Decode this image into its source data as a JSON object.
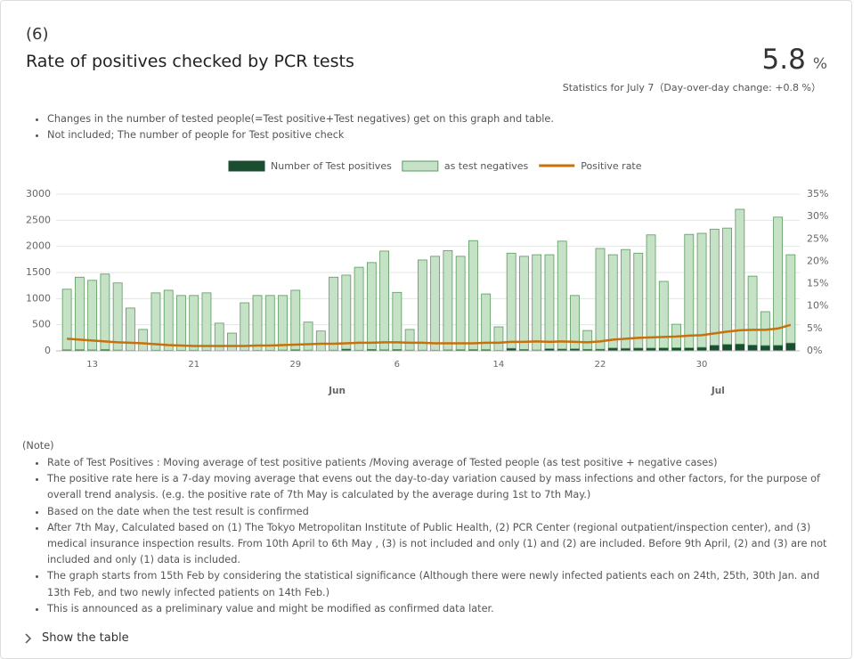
{
  "header": {
    "number": "(6)",
    "title": "Rate of positives checked by PCR tests",
    "value": 5.8,
    "unit": "%",
    "subtitle": "Statistics for July 7（Day-over-day change: +0.8 %）"
  },
  "intro": [
    "Changes in the number of tested people(=Test positive+Test negatives) get on this graph and table.",
    "Not included; The number of people for Test positive check"
  ],
  "chart_data": {
    "type": "bar",
    "stacked": true,
    "grid": true,
    "categories": [
      null,
      null,
      "13",
      null,
      null,
      null,
      null,
      null,
      null,
      null,
      "21",
      null,
      null,
      null,
      null,
      null,
      null,
      null,
      "29",
      null,
      null,
      null,
      null,
      null,
      null,
      null,
      "6",
      null,
      null,
      null,
      null,
      null,
      null,
      null,
      "14",
      null,
      null,
      null,
      null,
      null,
      null,
      null,
      "22",
      null,
      null,
      null,
      null,
      null,
      null,
      null,
      "30",
      null,
      null,
      null,
      null,
      null,
      null,
      null
    ],
    "month_labels": [
      null,
      null,
      null,
      null,
      null,
      null,
      null,
      null,
      null,
      null,
      null,
      null,
      null,
      null,
      null,
      null,
      null,
      null,
      null,
      null,
      null,
      "Jun",
      null,
      null,
      null,
      null,
      null,
      null,
      null,
      null,
      null,
      null,
      null,
      null,
      null,
      null,
      null,
      null,
      null,
      null,
      null,
      null,
      null,
      null,
      null,
      null,
      null,
      null,
      null,
      null,
      null,
      "Jul",
      null,
      null,
      null,
      null,
      null,
      null
    ],
    "series": [
      {
        "name": "Number of Test positives",
        "color": "#1b4d31",
        "values": [
          20,
          22,
          18,
          25,
          15,
          8,
          5,
          12,
          10,
          11,
          12,
          10,
          5,
          3,
          8,
          10,
          11,
          15,
          22,
          14,
          5,
          13,
          34,
          12,
          28,
          20,
          26,
          14,
          13,
          12,
          18,
          22,
          25,
          24,
          10,
          48,
          27,
          16,
          41,
          35,
          39,
          29,
          31,
          55,
          48,
          54,
          54,
          57,
          60,
          58,
          67,
          107,
          124,
          131,
          111,
          102,
          106,
          150
        ]
      },
      {
        "name": "as test negatives",
        "color": "#c5e2c6",
        "values": [
          1160,
          1388,
          1332,
          1445,
          1285,
          812,
          405,
          1098,
          1150,
          1049,
          1048,
          1100,
          525,
          337,
          912,
          1050,
          1049,
          1045,
          1138,
          536,
          375,
          1397,
          1416,
          1588,
          1662,
          1890,
          1094,
          396,
          1727,
          1798,
          1902,
          1788,
          2085,
          1066,
          450,
          1822,
          1783,
          1824,
          1799,
          2065,
          1021,
          361,
          1929,
          1785,
          1892,
          1816,
          2166,
          1273,
          450,
          2172,
          2183,
          2223,
          2226,
          2579,
          1319,
          648,
          2454,
          1690
        ]
      },
      {
        "name": "Positive rate",
        "color": "#c8700a",
        "type": "line",
        "axis": "y2",
        "values": [
          2.7,
          2.5,
          2.3,
          2.1,
          1.9,
          1.8,
          1.7,
          1.5,
          1.3,
          1.2,
          1.1,
          1.1,
          1.1,
          1.1,
          1.1,
          1.2,
          1.2,
          1.3,
          1.4,
          1.5,
          1.6,
          1.6,
          1.7,
          1.8,
          1.8,
          1.9,
          1.9,
          1.8,
          1.8,
          1.7,
          1.7,
          1.7,
          1.7,
          1.8,
          1.8,
          2.0,
          2.0,
          2.1,
          2.0,
          2.1,
          2.0,
          1.9,
          2.1,
          2.5,
          2.7,
          2.9,
          3.0,
          3.1,
          3.2,
          3.4,
          3.5,
          3.9,
          4.3,
          4.6,
          4.7,
          4.7,
          5.0,
          5.8
        ]
      }
    ],
    "ylim": [
      0,
      3000
    ],
    "yticks": [
      0,
      500,
      1000,
      1500,
      2000,
      2500,
      3000
    ],
    "y2lim": [
      0,
      35
    ],
    "y2ticks": [
      {
        "value": 0,
        "label": "0%"
      },
      {
        "value": 5,
        "label": "5%"
      },
      {
        "value": 10,
        "label": "10%"
      },
      {
        "value": 15,
        "label": "15%"
      },
      {
        "value": 20,
        "label": "20%"
      },
      {
        "value": 25,
        "label": "25%"
      },
      {
        "value": 30,
        "label": "30%"
      },
      {
        "value": 35,
        "label": "35%"
      }
    ]
  },
  "notes": {
    "title": "(Note)",
    "items": [
      "Rate of Test Positives : Moving average of test positive patients /Moving average of Tested people (as test positive + negative cases)",
      "The positive rate here is a 7-day moving average that evens out the day-to-day variation caused by mass infections and other factors, for the purpose of overall trend analysis. (e.g. the positive rate of 7th May is calculated by the average during 1st to 7th May.)",
      "Based on the date when the test result is confirmed",
      "After 7th May, Calculated based on (1) The Tokyo Metropolitan Institute of Public Health, (2) PCR Center (regional outpatient/inspection center), and (3) medical insurance inspection results. From 10th April to 6th May , (3) is not included and only (1) and (2) are included. Before 9th April, (2) and (3) are not included and only (1) data is included.",
      "The graph starts from 15th Feb by considering the statistical significance (Although there were newly infected patients each on 24th, 25th, 30th Jan. and 13th Feb, and two newly infected patients on 14th Feb.)",
      "This is announced as a preliminary value and might be modified as confirmed data later."
    ]
  },
  "footer": {
    "toggle": "Show the table"
  }
}
